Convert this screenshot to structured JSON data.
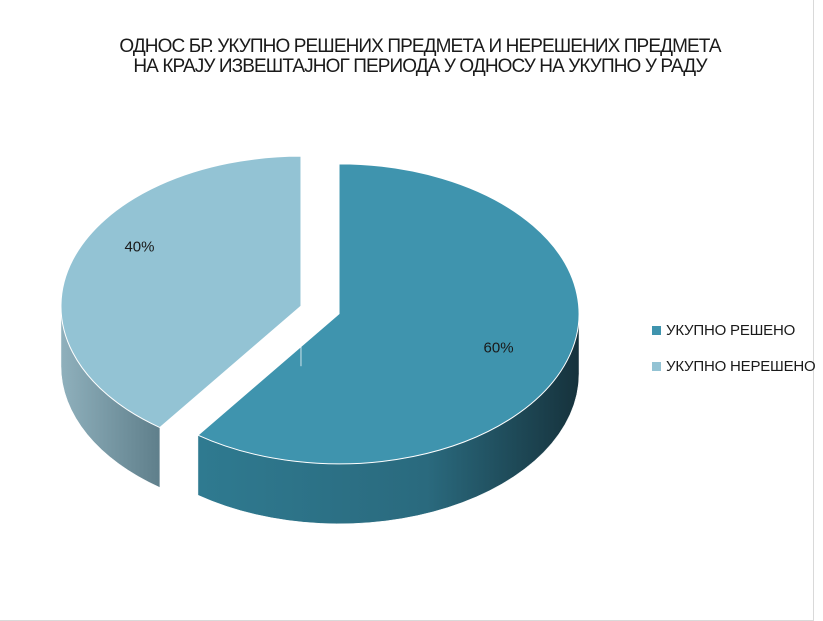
{
  "chart_data": {
    "type": "pie",
    "title_lines": [
      "ОДНОС БР. УКУПНО РЕШЕНИХ ПРЕДМЕТА И НЕРЕШЕНИХ ПРЕДМЕТА",
      "НА КРАЈУ ИЗВЕШТАЈНОГ ПЕРИОДА У ОДНОСУ НА УКУПНО У РАДУ"
    ],
    "series": [
      {
        "name": "УКУПНО РЕШЕНО",
        "value": 60,
        "label": "60%",
        "color": "#3f94ae"
      },
      {
        "name": "УКУПНО НЕРЕШЕНО",
        "value": 40,
        "label": "40%",
        "color": "#93c3d4"
      }
    ],
    "legend_position": "right",
    "style": "3d-exploded"
  }
}
